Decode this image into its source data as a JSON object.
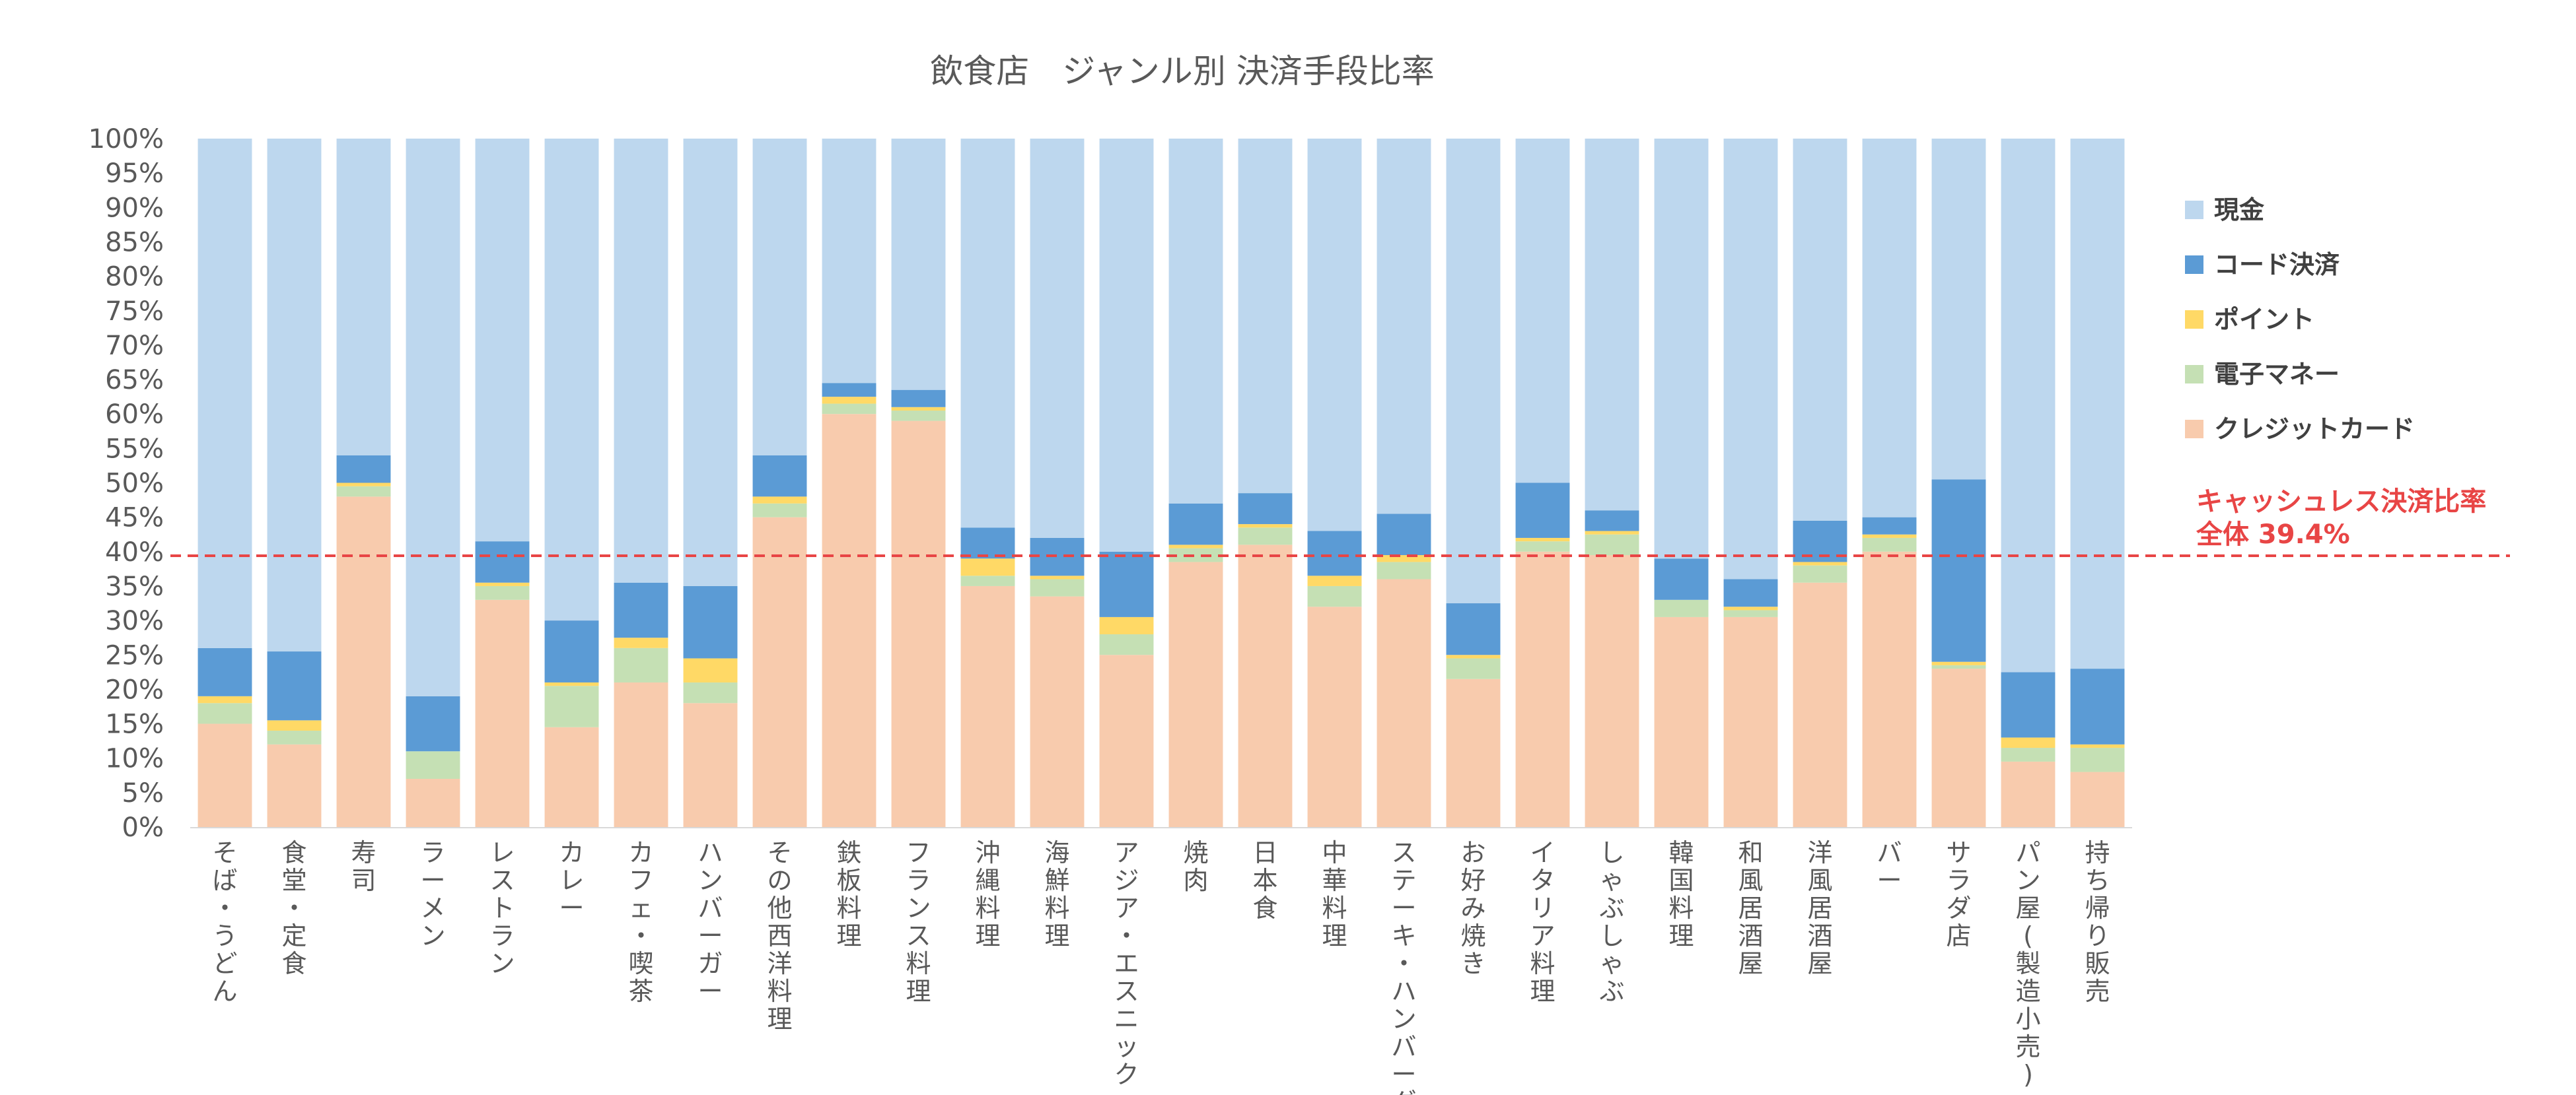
{
  "chart_data": {
    "type": "bar",
    "stacked": true,
    "title": "飲食店　ジャンル別 決済手段比率",
    "ylim": [
      0,
      100
    ],
    "yticks": [
      "0%",
      "5%",
      "10%",
      "15%",
      "20%",
      "25%",
      "30%",
      "35%",
      "40%",
      "45%",
      "50%",
      "55%",
      "60%",
      "65%",
      "70%",
      "75%",
      "80%",
      "85%",
      "90%",
      "95%",
      "100%"
    ],
    "categories": [
      "そば・うどん",
      "食堂・定食",
      "寿司",
      "ラーメン",
      "レストラン",
      "カレー",
      "カフェ・喫茶",
      "ハンバーガー",
      "その他西洋料理",
      "鉄板料理",
      "フランス料理",
      "沖縄料理",
      "海鮮料理",
      "アジア・エスニック",
      "焼肉",
      "日本食",
      "中華料理",
      "ステーキ・ハンバーグ",
      "お好み焼き",
      "イタリア料理",
      "しゃぶしゃぶ",
      "韓国料理",
      "和風居酒屋",
      "洋風居酒屋",
      "バー",
      "サラダ店",
      "パン屋(製造小売)",
      "持ち帰り販売"
    ],
    "series": [
      {
        "name": "クレジットカード",
        "color": "#f8cbad",
        "values": [
          15.0,
          12.0,
          48.0,
          7.0,
          33.0,
          14.5,
          21.0,
          18.0,
          45.0,
          60.0,
          59.0,
          35.0,
          33.5,
          25.0,
          38.5,
          41.0,
          32.0,
          36.0,
          21.5,
          40.0,
          39.5,
          30.5,
          30.5,
          35.5,
          40.0,
          23.0,
          9.5,
          8.0
        ]
      },
      {
        "name": "電子マネー",
        "color": "#c5e0b4",
        "values": [
          3.0,
          2.0,
          1.5,
          4.0,
          2.0,
          6.0,
          5.0,
          3.0,
          2.0,
          1.5,
          1.5,
          1.5,
          2.5,
          3.0,
          2.0,
          2.5,
          3.0,
          2.5,
          3.0,
          1.5,
          3.0,
          2.5,
          1.0,
          2.5,
          2.0,
          0.5,
          2.0,
          3.5
        ]
      },
      {
        "name": "ポイント",
        "color": "#ffd966",
        "values": [
          1.0,
          1.5,
          0.5,
          0.0,
          0.5,
          0.5,
          1.5,
          3.5,
          1.0,
          1.0,
          0.5,
          2.5,
          0.5,
          2.5,
          0.5,
          0.5,
          1.5,
          1.0,
          0.5,
          0.5,
          0.5,
          0.0,
          0.5,
          0.5,
          0.5,
          0.5,
          1.5,
          0.5
        ]
      },
      {
        "name": "コード決済",
        "color": "#5b9bd5",
        "values": [
          7.0,
          10.0,
          4.0,
          8.0,
          6.0,
          9.0,
          8.0,
          10.5,
          6.0,
          2.0,
          2.5,
          4.5,
          5.5,
          9.5,
          6.0,
          4.5,
          6.5,
          6.0,
          7.5,
          8.0,
          3.0,
          6.0,
          4.0,
          6.0,
          2.5,
          26.5,
          9.5,
          11.0
        ]
      },
      {
        "name": "現金",
        "color": "#bdd7ee",
        "values": [
          74.0,
          74.5,
          46.0,
          81.0,
          58.5,
          70.0,
          64.5,
          65.0,
          46.0,
          35.5,
          36.5,
          56.5,
          58.0,
          60.0,
          53.0,
          51.5,
          57.0,
          54.5,
          67.5,
          50.0,
          54.0,
          61.0,
          64.0,
          55.5,
          55.0,
          49.5,
          77.5,
          77.0
        ]
      }
    ],
    "legend_order": [
      "現金",
      "コード決済",
      "ポイント",
      "電子マネー",
      "クレジットカード"
    ],
    "legend_position": "right",
    "reference_line": {
      "value": 39.4,
      "color": "#e84545",
      "style": "dashed"
    },
    "annotation": {
      "line1": "キャッシュレス決済比率",
      "line2": "全体 39.4%"
    }
  }
}
